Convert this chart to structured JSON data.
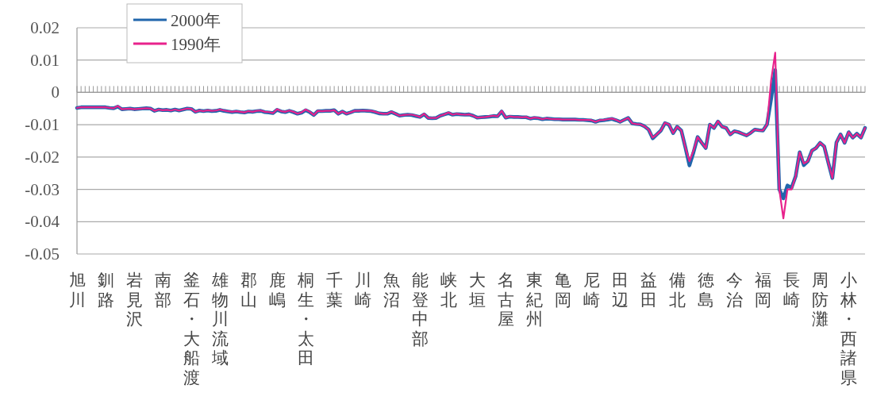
{
  "chart_data": {
    "type": "line",
    "categories": [
      "旭川",
      null,
      null,
      null,
      null,
      null,
      null,
      "釧路",
      null,
      null,
      null,
      null,
      null,
      null,
      "岩見沢",
      null,
      null,
      null,
      null,
      null,
      null,
      "南部",
      null,
      null,
      null,
      null,
      null,
      null,
      "釜石・大船渡",
      null,
      null,
      null,
      null,
      null,
      null,
      "雄物川流域",
      null,
      null,
      null,
      null,
      null,
      null,
      "郡山",
      null,
      null,
      null,
      null,
      null,
      null,
      "鹿嶋",
      null,
      null,
      null,
      null,
      null,
      null,
      "桐生・太田",
      null,
      null,
      null,
      null,
      null,
      null,
      "千葉",
      null,
      null,
      null,
      null,
      null,
      null,
      "川崎",
      null,
      null,
      null,
      null,
      null,
      null,
      "魚沼",
      null,
      null,
      null,
      null,
      null,
      null,
      "能登中部",
      null,
      null,
      null,
      null,
      null,
      null,
      "峡北",
      null,
      null,
      null,
      null,
      null,
      null,
      "大垣",
      null,
      null,
      null,
      null,
      null,
      null,
      "名古屋",
      null,
      null,
      null,
      null,
      null,
      null,
      "東紀州",
      null,
      null,
      null,
      null,
      null,
      null,
      "亀岡",
      null,
      null,
      null,
      null,
      null,
      null,
      "尼崎",
      null,
      null,
      null,
      null,
      null,
      null,
      "田辺",
      null,
      null,
      null,
      null,
      null,
      null,
      "益田",
      null,
      null,
      null,
      null,
      null,
      null,
      "備北",
      null,
      null,
      null,
      null,
      null,
      null,
      "徳島",
      null,
      null,
      null,
      null,
      null,
      null,
      "今治",
      null,
      null,
      null,
      null,
      null,
      null,
      "福岡",
      null,
      null,
      null,
      null,
      null,
      null,
      "長崎",
      null,
      null,
      null,
      null,
      null,
      null,
      "周防灘",
      null,
      null,
      null,
      null,
      null,
      null,
      "小林・西諸県",
      null,
      null,
      null,
      null
    ],
    "series": [
      {
        "name": "2000年",
        "color": "#2166ac",
        "values": [
          -0.0048,
          -0.0046,
          -0.0046,
          -0.0046,
          -0.0046,
          -0.0046,
          -0.0046,
          -0.0046,
          -0.0048,
          -0.0049,
          -0.0044,
          -0.0052,
          -0.0051,
          -0.005,
          -0.0052,
          -0.0051,
          -0.005,
          -0.0049,
          -0.005,
          -0.0057,
          -0.0053,
          -0.0055,
          -0.0054,
          -0.0056,
          -0.0053,
          -0.0056,
          -0.0053,
          -0.005,
          -0.0051,
          -0.006,
          -0.0056,
          -0.0058,
          -0.0056,
          -0.0058,
          -0.0057,
          -0.0054,
          -0.0057,
          -0.0059,
          -0.0061,
          -0.0059,
          -0.0061,
          -0.0062,
          -0.0059,
          -0.006,
          -0.0058,
          -0.0057,
          -0.0061,
          -0.0062,
          -0.0064,
          -0.0054,
          -0.0059,
          -0.0061,
          -0.0057,
          -0.0061,
          -0.0066,
          -0.0063,
          -0.0055,
          -0.0061,
          -0.007,
          -0.0058,
          -0.0058,
          -0.0057,
          -0.0057,
          -0.0055,
          -0.0066,
          -0.0059,
          -0.0066,
          -0.0062,
          -0.0057,
          -0.0057,
          -0.0056,
          -0.0057,
          -0.0058,
          -0.0061,
          -0.0065,
          -0.0066,
          -0.0066,
          -0.0061,
          -0.0066,
          -0.0072,
          -0.007,
          -0.0069,
          -0.007,
          -0.0073,
          -0.0076,
          -0.0068,
          -0.0079,
          -0.008,
          -0.0079,
          -0.0072,
          -0.0068,
          -0.0064,
          -0.0069,
          -0.0067,
          -0.0068,
          -0.0069,
          -0.0068,
          -0.0072,
          -0.0078,
          -0.0077,
          -0.0076,
          -0.0075,
          -0.0073,
          -0.0074,
          -0.0059,
          -0.0078,
          -0.0075,
          -0.0076,
          -0.0076,
          -0.0077,
          -0.0077,
          -0.0081,
          -0.0079,
          -0.008,
          -0.0083,
          -0.0081,
          -0.0082,
          -0.0083,
          -0.0083,
          -0.0084,
          -0.0084,
          -0.0084,
          -0.0084,
          -0.0085,
          -0.0085,
          -0.0086,
          -0.0087,
          -0.0091,
          -0.0087,
          -0.0086,
          -0.0084,
          -0.0082,
          -0.0086,
          -0.0091,
          -0.0085,
          -0.0079,
          -0.0096,
          -0.0098,
          -0.0099,
          -0.0105,
          -0.0115,
          -0.0142,
          -0.013,
          -0.0118,
          -0.0095,
          -0.01,
          -0.0126,
          -0.0106,
          -0.0118,
          -0.017,
          -0.0226,
          -0.0185,
          -0.0138,
          -0.0156,
          -0.0172,
          -0.01,
          -0.011,
          -0.009,
          -0.0106,
          -0.011,
          -0.013,
          -0.012,
          -0.0123,
          -0.0128,
          -0.0133,
          -0.0125,
          -0.0115,
          -0.0117,
          -0.0118,
          -0.0099,
          -0.002,
          0.0069,
          -0.03,
          -0.0328,
          -0.0288,
          -0.0295,
          -0.026,
          -0.0185,
          -0.0225,
          -0.0213,
          -0.018,
          -0.0172,
          -0.0156,
          -0.0167,
          -0.0217,
          -0.0265,
          -0.0155,
          -0.013,
          -0.0156,
          -0.0123,
          -0.014,
          -0.0128,
          -0.014,
          -0.011
        ]
      },
      {
        "name": "1990年",
        "color": "#e8228c",
        "values": [
          -0.0048,
          -0.0046,
          -0.0046,
          -0.0046,
          -0.0046,
          -0.0046,
          -0.0046,
          -0.0046,
          -0.0048,
          -0.0049,
          -0.0042,
          -0.0052,
          -0.0051,
          -0.005,
          -0.0052,
          -0.0051,
          -0.005,
          -0.0049,
          -0.005,
          -0.0057,
          -0.0053,
          -0.0055,
          -0.0054,
          -0.0056,
          -0.0053,
          -0.0056,
          -0.0053,
          -0.005,
          -0.0051,
          -0.006,
          -0.0056,
          -0.0058,
          -0.0055,
          -0.0057,
          -0.0056,
          -0.0053,
          -0.0056,
          -0.0058,
          -0.006,
          -0.0058,
          -0.006,
          -0.0062,
          -0.0058,
          -0.006,
          -0.0057,
          -0.0056,
          -0.006,
          -0.0061,
          -0.0064,
          -0.0052,
          -0.0058,
          -0.006,
          -0.0056,
          -0.006,
          -0.0066,
          -0.0062,
          -0.0053,
          -0.006,
          -0.007,
          -0.0057,
          -0.0058,
          -0.0057,
          -0.0057,
          -0.0055,
          -0.0066,
          -0.0059,
          -0.0066,
          -0.0062,
          -0.0057,
          -0.0057,
          -0.0056,
          -0.0057,
          -0.0057,
          -0.006,
          -0.0064,
          -0.0066,
          -0.0066,
          -0.006,
          -0.0066,
          -0.0072,
          -0.007,
          -0.0069,
          -0.0069,
          -0.0072,
          -0.0076,
          -0.0066,
          -0.0079,
          -0.0079,
          -0.0079,
          -0.0072,
          -0.0068,
          -0.0062,
          -0.0069,
          -0.0066,
          -0.0068,
          -0.0069,
          -0.0068,
          -0.0072,
          -0.0078,
          -0.0077,
          -0.0076,
          -0.0074,
          -0.0072,
          -0.0074,
          -0.0057,
          -0.0078,
          -0.0074,
          -0.0076,
          -0.0076,
          -0.0077,
          -0.0076,
          -0.0081,
          -0.0078,
          -0.0079,
          -0.0083,
          -0.008,
          -0.0082,
          -0.0083,
          -0.0083,
          -0.0084,
          -0.0084,
          -0.0084,
          -0.0084,
          -0.0085,
          -0.0085,
          -0.0085,
          -0.0086,
          -0.0091,
          -0.0086,
          -0.0085,
          -0.0083,
          -0.0081,
          -0.0085,
          -0.0091,
          -0.0085,
          -0.0079,
          -0.0096,
          -0.0098,
          -0.0099,
          -0.0105,
          -0.0115,
          -0.014,
          -0.013,
          -0.0118,
          -0.0094,
          -0.0099,
          -0.0126,
          -0.0106,
          -0.0118,
          -0.017,
          -0.0213,
          -0.018,
          -0.0138,
          -0.0156,
          -0.0172,
          -0.0099,
          -0.011,
          -0.0089,
          -0.0106,
          -0.011,
          -0.013,
          -0.012,
          -0.0123,
          -0.0128,
          -0.0133,
          -0.0125,
          -0.0115,
          -0.0117,
          -0.0118,
          -0.0099,
          0.0037,
          0.0123,
          -0.03,
          -0.039,
          -0.03,
          -0.03,
          -0.026,
          -0.0185,
          -0.022,
          -0.0213,
          -0.018,
          -0.0172,
          -0.0156,
          -0.0167,
          -0.0217,
          -0.0265,
          -0.0155,
          -0.013,
          -0.0156,
          -0.0123,
          -0.014,
          -0.0128,
          -0.014,
          -0.011
        ]
      }
    ],
    "ylim": [
      -0.05,
      0.02
    ],
    "yticks": [
      0.02,
      0.01,
      0,
      -0.01,
      -0.02,
      -0.03,
      -0.04,
      -0.05
    ],
    "grid": "y",
    "legend": "top left"
  }
}
